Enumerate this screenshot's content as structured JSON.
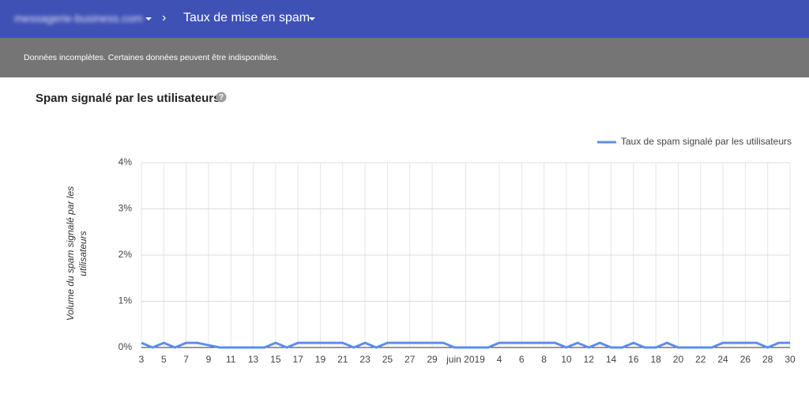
{
  "header": {
    "domain": "messagerie-business.com",
    "report": "Taux de mise en spam"
  },
  "banner": "Données incomplètes. Certaines données peuvent être indisponibles.",
  "chart_data": {
    "type": "line",
    "title": "Spam signalé par les utilisateurs",
    "y_label": "Volume du spam signalé par les utilisateurs",
    "categories": [
      "3",
      null,
      "5",
      null,
      "7",
      null,
      "9",
      null,
      "11",
      null,
      "13",
      null,
      "15",
      null,
      "17",
      null,
      "19",
      null,
      "21",
      null,
      "23",
      null,
      "25",
      null,
      "27",
      null,
      "29",
      null,
      null,
      "juin 2019",
      null,
      null,
      "4",
      null,
      "6",
      null,
      "8",
      null,
      "10",
      null,
      "12",
      null,
      "14",
      null,
      "16",
      null,
      "18",
      null,
      "20",
      null,
      "22",
      null,
      "24",
      null,
      "26",
      null,
      "28",
      null,
      "30"
    ],
    "series": [
      {
        "name": "Taux de spam signalé par les utilisateurs",
        "color": "#5b8def",
        "values": [
          0.1,
          0,
          0.1,
          0,
          0.1,
          0.1,
          0.05,
          0,
          0,
          0,
          0,
          0,
          0.1,
          0,
          0.1,
          0.1,
          0.1,
          0.1,
          0.1,
          0,
          0.1,
          0,
          0.1,
          0.1,
          0.1,
          0.1,
          0.1,
          0.1,
          0,
          0,
          0,
          0,
          0.1,
          0.1,
          0.1,
          0.1,
          0.1,
          0.1,
          0,
          0.1,
          0,
          0.1,
          0,
          0,
          0.1,
          0,
          0,
          0.1,
          0,
          0,
          0,
          0,
          0.1,
          0.1,
          0.1,
          0.1,
          0,
          0.1,
          0.1
        ]
      }
    ],
    "ylim": [
      0,
      4
    ],
    "yticks": [
      {
        "value": 0,
        "label": "0%"
      },
      {
        "value": 1,
        "label": "1%"
      },
      {
        "value": 2,
        "label": "2%"
      },
      {
        "value": 3,
        "label": "3%"
      },
      {
        "value": 4,
        "label": "4%"
      }
    ],
    "grid": true,
    "legend": "top-right"
  }
}
